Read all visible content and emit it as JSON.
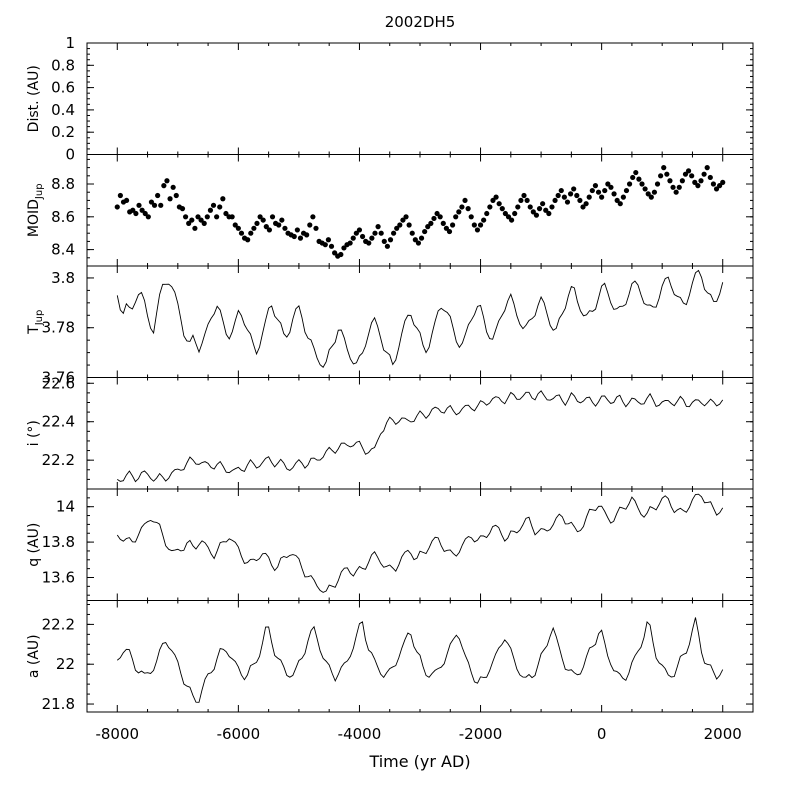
{
  "chart_data": {
    "title": "2002DH5",
    "xlabel": "Time (yr AD)",
    "xlim": [
      -8500,
      2500
    ],
    "x_ticks": [
      -8000,
      -6000,
      -4000,
      -2000,
      0,
      2000
    ],
    "x_range": [
      -8000,
      2000
    ],
    "panels": [
      {
        "key": "dist",
        "type": "line",
        "ylabel": "Dist. (AU)",
        "ylabel_sub": "",
        "ylim": [
          0,
          1
        ],
        "y_ticks": [
          0,
          0.2,
          0.4,
          0.6,
          0.8,
          1
        ],
        "y_tick_labels": [
          "0",
          "0.2",
          "0.4",
          "0.6",
          "0.8",
          "1"
        ],
        "values": []
      },
      {
        "key": "moid",
        "type": "scatter",
        "ylabel": "MOID",
        "ylabel_sub": "Jup",
        "ylim": [
          8.3,
          8.98
        ],
        "y_ticks": [
          8.4,
          8.6,
          8.8
        ],
        "y_tick_labels": [
          "8.4",
          "8.6",
          "8.8"
        ],
        "values": [
          8.66,
          8.73,
          8.69,
          8.7,
          8.63,
          8.64,
          8.62,
          8.67,
          8.64,
          8.62,
          8.6,
          8.69,
          8.67,
          8.73,
          8.67,
          8.79,
          8.82,
          8.71,
          8.78,
          8.73,
          8.66,
          8.65,
          8.6,
          8.56,
          8.58,
          8.53,
          8.6,
          8.58,
          8.56,
          8.6,
          8.64,
          8.67,
          8.6,
          8.66,
          8.71,
          8.62,
          8.6,
          8.6,
          8.55,
          8.53,
          8.5,
          8.47,
          8.46,
          8.5,
          8.53,
          8.56,
          8.6,
          8.58,
          8.54,
          8.52,
          8.6,
          8.56,
          8.55,
          8.58,
          8.53,
          8.5,
          8.49,
          8.48,
          8.52,
          8.47,
          8.5,
          8.49,
          8.55,
          8.6,
          8.53,
          8.45,
          8.44,
          8.43,
          8.46,
          8.42,
          8.38,
          8.36,
          8.37,
          8.41,
          8.43,
          8.44,
          8.47,
          8.5,
          8.52,
          8.48,
          8.45,
          8.44,
          8.47,
          8.5,
          8.54,
          8.5,
          8.45,
          8.42,
          8.46,
          8.5,
          8.53,
          8.55,
          8.58,
          8.6,
          8.55,
          8.5,
          8.46,
          8.44,
          8.47,
          8.51,
          8.54,
          8.56,
          8.59,
          8.62,
          8.6,
          8.56,
          8.53,
          8.51,
          8.55,
          8.6,
          8.63,
          8.66,
          8.7,
          8.65,
          8.6,
          8.55,
          8.52,
          8.55,
          8.58,
          8.62,
          8.66,
          8.7,
          8.72,
          8.68,
          8.65,
          8.62,
          8.6,
          8.58,
          8.62,
          8.66,
          8.7,
          8.73,
          8.7,
          8.66,
          8.63,
          8.61,
          8.65,
          8.68,
          8.64,
          8.62,
          8.66,
          8.7,
          8.73,
          8.76,
          8.72,
          8.69,
          8.74,
          8.77,
          8.73,
          8.7,
          8.66,
          8.68,
          8.72,
          8.76,
          8.79,
          8.75,
          8.72,
          8.76,
          8.8,
          8.78,
          8.74,
          8.7,
          8.68,
          8.72,
          8.76,
          8.8,
          8.84,
          8.87,
          8.83,
          8.8,
          8.77,
          8.74,
          8.72,
          8.75,
          8.8,
          8.85,
          8.9,
          8.86,
          8.82,
          8.78,
          8.75,
          8.78,
          8.82,
          8.86,
          8.88,
          8.85,
          8.81,
          8.79,
          8.82,
          8.86,
          8.9,
          8.84,
          8.8,
          8.77,
          8.79,
          8.81
        ],
        "series_samples": 200
      },
      {
        "key": "tjup",
        "type": "line",
        "ylabel": "T",
        "ylabel_sub": "Jup",
        "ylim": [
          3.76,
          3.8048
        ],
        "y_ticks": [
          3.76,
          3.78,
          3.8
        ],
        "y_tick_labels": [
          "3.76",
          "3.78",
          "3.8"
        ],
        "values": [
          3.793,
          3.786,
          3.789,
          3.785,
          3.792,
          3.795,
          3.79,
          3.782,
          3.779,
          3.788,
          3.797,
          3.8,
          3.796,
          3.792,
          3.785,
          3.776,
          3.772,
          3.778,
          3.771,
          3.774,
          3.78,
          3.786,
          3.789,
          3.784,
          3.779,
          3.776,
          3.781,
          3.787,
          3.784,
          3.778,
          3.773,
          3.77,
          3.777,
          3.783,
          3.79,
          3.786,
          3.781,
          3.776,
          3.778,
          3.785,
          3.788,
          3.784,
          3.777,
          3.773,
          3.769,
          3.766,
          3.764,
          3.77,
          3.775,
          3.78,
          3.776,
          3.771,
          3.767,
          3.765,
          3.768,
          3.775,
          3.78,
          3.783,
          3.779,
          3.772,
          3.768,
          3.765,
          3.771,
          3.777,
          3.784,
          3.786,
          3.781,
          3.776,
          3.771,
          3.773,
          3.779,
          3.786,
          3.79,
          3.786,
          3.781,
          3.776,
          3.772,
          3.776,
          3.782,
          3.787,
          3.789,
          3.784,
          3.778,
          3.775,
          3.779,
          3.785,
          3.79,
          3.792,
          3.788,
          3.783,
          3.779,
          3.781,
          3.785,
          3.789,
          3.791,
          3.787,
          3.781,
          3.778,
          3.783,
          3.789,
          3.794,
          3.796,
          3.79,
          3.786,
          3.784,
          3.786,
          3.79,
          3.795,
          3.797,
          3.792,
          3.788,
          3.786,
          3.789,
          3.793,
          3.797,
          3.798,
          3.794,
          3.789,
          3.787,
          3.789,
          3.793,
          3.798,
          3.8,
          3.796,
          3.792,
          3.789,
          3.791,
          3.796,
          3.801,
          3.803,
          3.797,
          3.792,
          3.79,
          3.793,
          3.798
        ],
        "series_samples": 200
      },
      {
        "key": "i",
        "type": "line",
        "ylabel": "i (°)",
        "ylabel_sub": "",
        "ylim": [
          22.05,
          22.63
        ],
        "y_ticks": [
          22.2,
          22.4,
          22.6
        ],
        "y_tick_labels": [
          "22.2",
          "22.4",
          "22.6"
        ],
        "values": [
          22.1,
          22.11,
          22.12,
          22.11,
          22.13,
          22.12,
          22.1,
          22.11,
          22.12,
          22.14,
          22.17,
          22.19,
          22.2,
          22.18,
          22.17,
          22.18,
          22.16,
          22.15,
          22.14,
          22.16,
          22.18,
          22.17,
          22.19,
          22.2,
          22.19,
          22.18,
          22.16,
          22.17,
          22.19,
          22.18,
          22.2,
          22.22,
          22.24,
          22.26,
          22.27,
          22.28,
          22.29,
          22.27,
          22.25,
          22.24,
          22.35,
          22.39,
          22.41,
          22.41,
          22.4,
          22.42,
          22.43,
          22.44,
          22.46,
          22.46,
          22.47,
          22.45,
          22.46,
          22.47,
          22.48,
          22.48,
          22.5,
          22.52,
          22.51,
          22.52,
          22.53,
          22.53,
          22.54,
          22.53,
          22.55,
          22.52,
          22.53,
          22.52,
          22.51,
          22.53,
          22.51,
          22.52,
          22.5,
          22.51,
          22.52,
          22.51,
          22.52,
          22.5,
          22.51,
          22.5,
          22.51,
          22.52,
          22.5,
          22.49,
          22.51,
          22.5,
          22.51,
          22.49,
          22.5,
          22.51,
          22.49,
          22.5,
          22.51
        ],
        "series_samples": 200
      },
      {
        "key": "q",
        "type": "line",
        "ylabel": "q (AU)",
        "ylabel_sub": "",
        "ylim": [
          13.47,
          14.1
        ],
        "y_ticks": [
          13.6,
          13.8,
          14
        ],
        "y_tick_labels": [
          "13.6",
          "13.8",
          "14"
        ],
        "values": [
          13.84,
          13.82,
          13.79,
          13.85,
          13.89,
          13.95,
          13.88,
          13.8,
          13.73,
          13.76,
          13.79,
          13.77,
          13.81,
          13.76,
          13.73,
          13.78,
          13.84,
          13.78,
          13.72,
          13.67,
          13.71,
          13.74,
          13.68,
          13.66,
          13.71,
          13.75,
          13.69,
          13.63,
          13.58,
          13.55,
          13.51,
          13.56,
          13.6,
          13.66,
          13.62,
          13.64,
          13.69,
          13.73,
          13.69,
          13.64,
          13.66,
          13.71,
          13.76,
          13.7,
          13.74,
          13.79,
          13.82,
          13.77,
          13.72,
          13.75,
          13.8,
          13.84,
          13.8,
          13.84,
          13.89,
          13.86,
          13.82,
          13.85,
          13.89,
          13.93,
          13.87,
          13.85,
          13.88,
          13.92,
          13.95,
          13.9,
          13.86,
          13.9,
          13.97,
          14.02,
          13.96,
          13.92,
          13.96,
          14.01,
          14.04,
          13.98,
          13.95,
          13.99,
          14.03,
          14.05,
          13.99,
          13.96,
          14.0,
          14.05,
          14.07,
          14.01,
          13.97,
          13.99
        ],
        "series_samples": 200
      },
      {
        "key": "a",
        "type": "line",
        "ylabel": "a (AU)",
        "ylabel_sub": "",
        "ylim": [
          21.76,
          22.32
        ],
        "y_ticks": [
          21.8,
          22,
          22.2
        ],
        "y_tick_labels": [
          "21.8",
          "22",
          "22.2"
        ],
        "values": [
          22.02,
          22.08,
          22.04,
          21.97,
          21.94,
          21.97,
          22.02,
          22.14,
          22.06,
          22.0,
          21.9,
          21.84,
          21.82,
          21.92,
          21.98,
          22.05,
          22.08,
          22.02,
          21.96,
          21.94,
          21.99,
          22.06,
          22.2,
          22.08,
          22.0,
          21.95,
          21.95,
          22.02,
          22.12,
          22.18,
          22.06,
          21.98,
          21.94,
          21.97,
          22.03,
          22.12,
          22.22,
          22.07,
          22.0,
          21.95,
          21.95,
          22.02,
          22.08,
          22.18,
          22.06,
          21.98,
          21.94,
          21.96,
          22.02,
          22.08,
          22.18,
          22.04,
          21.97,
          21.9,
          21.93,
          22.0,
          22.06,
          22.15,
          22.04,
          21.97,
          21.92,
          21.94,
          22.01,
          22.08,
          22.2,
          22.06,
          21.99,
          21.94,
          21.96,
          22.03,
          22.1,
          22.18,
          22.05,
          21.98,
          21.92,
          21.95,
          22.02,
          22.1,
          22.22,
          22.07,
          21.99,
          21.94,
          21.96,
          22.03,
          22.1,
          22.22,
          22.05,
          21.98,
          21.94,
          21.97
        ],
        "series_samples": 200
      }
    ]
  }
}
